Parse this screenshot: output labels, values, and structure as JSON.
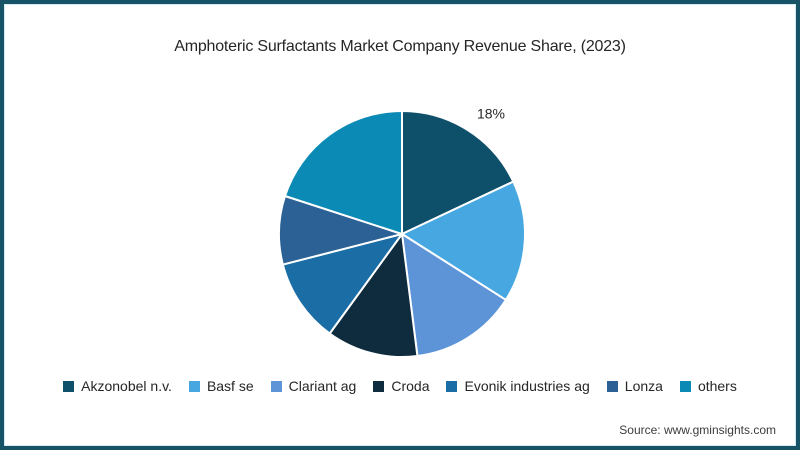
{
  "page": {
    "title": "Amphoteric Surfactants Market Company Revenue Share, (2023)",
    "source": "Source: www.gminsights.com"
  },
  "chart_data": {
    "type": "pie",
    "title": "Amphoteric Surfactants Market Company Revenue Share, (2023)",
    "labels": [
      "Akzonobel n.v.",
      "Basf se",
      "Clariant ag",
      "Croda",
      "Evonik industries ag",
      "Lonza",
      "others"
    ],
    "values": [
      18,
      16,
      14,
      12,
      11,
      9,
      20
    ],
    "unit": "%",
    "colors": [
      "#0e5069",
      "#47a7e1",
      "#5d94d8",
      "#0e2c3e",
      "#1b6da5",
      "#2c6195",
      "#0a8ab4"
    ],
    "start_angle_deg": 0,
    "direction": "clockwise",
    "data_labels": [
      {
        "index": 0,
        "text": "18%"
      }
    ],
    "legend_position": "bottom",
    "slice_separator_color": "#ffffff"
  },
  "colors": {
    "frame_border": "#175366",
    "background": "#ffffff",
    "text": "#262626",
    "source_text": "#3c3c3c"
  }
}
